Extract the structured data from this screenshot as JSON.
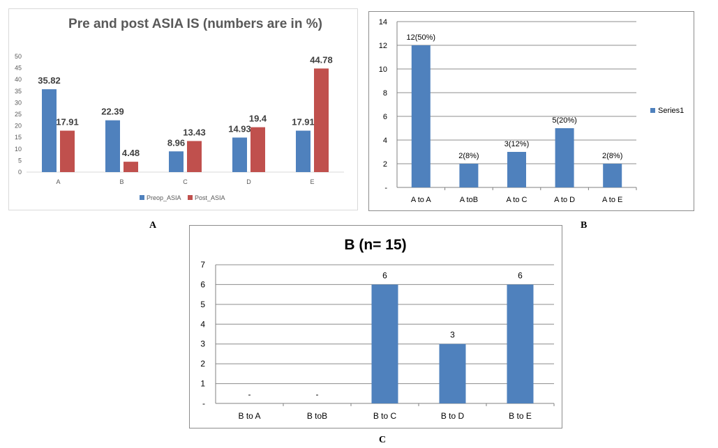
{
  "panel_labels": {
    "a": "A",
    "b": "B",
    "c": "C"
  },
  "colors": {
    "blue": "#4f81bd",
    "red": "#c0504d",
    "grid": "#8c8c8c",
    "axis": "#808080",
    "title_gray": "#595959"
  },
  "chart_data": [
    {
      "type": "bar",
      "title": "Pre and post ASIA IS  (numbers are in %)",
      "categories": [
        "A",
        "B",
        "C",
        "D",
        "E"
      ],
      "series": [
        {
          "name": "Preop_ASIA",
          "values": [
            35.82,
            22.39,
            8.96,
            14.93,
            17.91
          ],
          "color": "#4f81bd"
        },
        {
          "name": "Post_ASIA",
          "values": [
            17.91,
            4.48,
            13.43,
            19.4,
            44.78
          ],
          "color": "#c0504d"
        }
      ],
      "data_labels": [
        [
          "35.82",
          "22.39",
          "8.96",
          "14.93",
          "17.91"
        ],
        [
          "17.91",
          "4.48",
          "13.43",
          "19.4",
          "44.78"
        ]
      ],
      "yticks": [
        "0",
        "5",
        "10",
        "15",
        "20",
        "25",
        "30",
        "35",
        "40",
        "45",
        "50"
      ],
      "ylim": [
        0,
        50
      ],
      "grid": false,
      "legend": "bottom"
    },
    {
      "type": "bar",
      "categories": [
        "A to A",
        "A toB",
        "A to C",
        "A to D",
        "A to E"
      ],
      "series": [
        {
          "name": "Series1",
          "values": [
            12,
            2,
            3,
            5,
            2
          ],
          "color": "#4f81bd"
        }
      ],
      "data_labels": [
        "12(50%)",
        "2(8%)",
        "3(12%)",
        "5(20%)",
        "2(8%)"
      ],
      "yticks": [
        "-",
        "2",
        "4",
        "6",
        "8",
        "10",
        "12",
        "14"
      ],
      "ylim": [
        0,
        14
      ],
      "grid": true,
      "legend": "right"
    },
    {
      "type": "bar",
      "title": "B  (n= 15)",
      "categories": [
        "B to A",
        "B toB",
        "B to C",
        "B to D",
        "B to E"
      ],
      "series": [
        {
          "values": [
            0,
            0,
            6,
            3,
            6
          ],
          "color": "#4f81bd"
        }
      ],
      "data_labels": [
        "-",
        "-",
        "6",
        "3",
        "6"
      ],
      "yticks": [
        "-",
        "1",
        "2",
        "3",
        "4",
        "5",
        "6",
        "7"
      ],
      "ylim": [
        0,
        7
      ],
      "grid": true,
      "legend": "none"
    }
  ]
}
